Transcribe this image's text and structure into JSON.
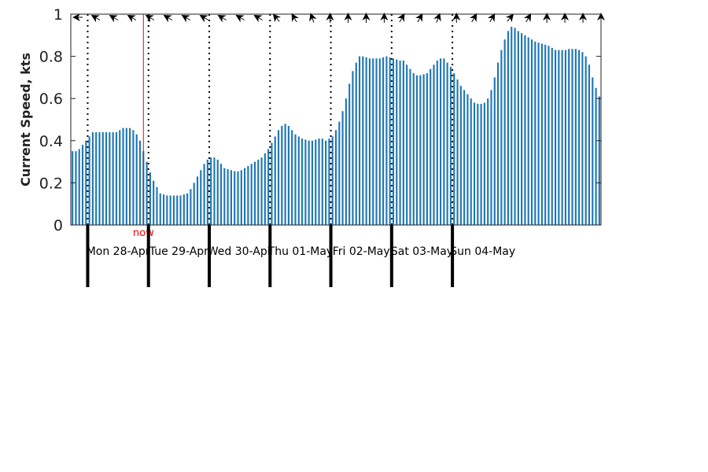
{
  "chart_data": {
    "type": "bar",
    "ylabel": "Current Speed, kts",
    "ylim": [
      0,
      1
    ],
    "yticks": [
      "0",
      "0.2",
      "0.4",
      "0.6",
      "0.8",
      "1"
    ],
    "bar_color": "#1f77b4",
    "now_color": "#ff0000",
    "grid": false,
    "now_label": "now",
    "now_index": 21.5,
    "day_labels": [
      "Mon 28-Apr",
      "Tue 29-Apr",
      "Wed 30-Apr",
      "Thu 01-May",
      "Fri 02-May",
      "Sat 03-May",
      "Sun 04-May"
    ],
    "day_boundaries": [
      5,
      23,
      41,
      59,
      77,
      95,
      113
    ],
    "direction_arrows_deg": [
      270,
      300,
      300,
      300,
      300,
      300,
      300,
      300,
      300,
      300,
      300,
      320,
      330,
      340,
      0,
      0,
      0,
      0,
      30,
      30,
      20,
      0,
      30,
      30,
      40,
      30,
      0,
      0,
      0,
      0
    ],
    "values": [
      0.35,
      0.35,
      0.36,
      0.38,
      0.4,
      0.42,
      0.44,
      0.44,
      0.44,
      0.44,
      0.44,
      0.44,
      0.44,
      0.44,
      0.45,
      0.46,
      0.46,
      0.46,
      0.45,
      0.43,
      0.4,
      0.35,
      0.3,
      0.25,
      0.21,
      0.18,
      0.15,
      0.145,
      0.14,
      0.14,
      0.14,
      0.14,
      0.14,
      0.145,
      0.15,
      0.17,
      0.2,
      0.23,
      0.26,
      0.29,
      0.31,
      0.32,
      0.32,
      0.31,
      0.29,
      0.27,
      0.265,
      0.26,
      0.255,
      0.255,
      0.26,
      0.27,
      0.28,
      0.29,
      0.3,
      0.31,
      0.32,
      0.34,
      0.36,
      0.39,
      0.42,
      0.45,
      0.47,
      0.48,
      0.47,
      0.45,
      0.43,
      0.42,
      0.41,
      0.405,
      0.4,
      0.4,
      0.405,
      0.41,
      0.41,
      0.4,
      0.41,
      0.42,
      0.45,
      0.49,
      0.54,
      0.6,
      0.67,
      0.73,
      0.77,
      0.8,
      0.8,
      0.795,
      0.79,
      0.79,
      0.79,
      0.79,
      0.795,
      0.8,
      0.795,
      0.79,
      0.785,
      0.78,
      0.78,
      0.76,
      0.74,
      0.72,
      0.71,
      0.71,
      0.715,
      0.72,
      0.74,
      0.76,
      0.78,
      0.79,
      0.79,
      0.77,
      0.75,
      0.72,
      0.69,
      0.66,
      0.64,
      0.62,
      0.6,
      0.58,
      0.575,
      0.575,
      0.58,
      0.6,
      0.64,
      0.7,
      0.77,
      0.83,
      0.88,
      0.92,
      0.94,
      0.935,
      0.92,
      0.91,
      0.9,
      0.89,
      0.88,
      0.87,
      0.865,
      0.86,
      0.855,
      0.85,
      0.84,
      0.83,
      0.83,
      0.83,
      0.83,
      0.835,
      0.835,
      0.835,
      0.83,
      0.82,
      0.8,
      0.76,
      0.7,
      0.65,
      0.61
    ]
  }
}
